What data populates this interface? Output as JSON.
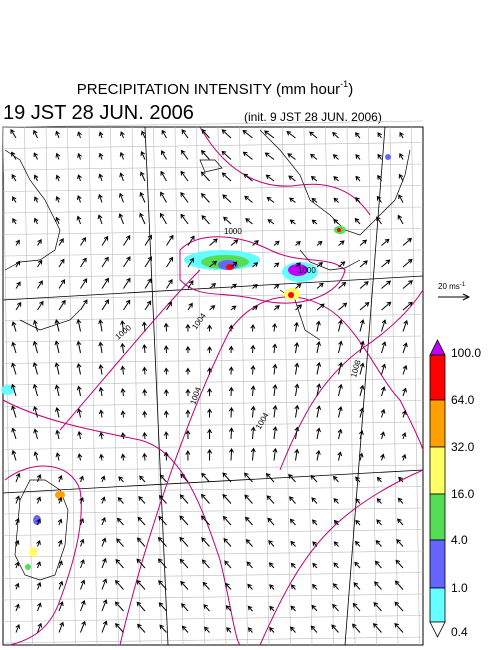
{
  "title": {
    "main": "PRECIPITATION INTENSITY (mm hour",
    "superscript": "-1",
    "close": ")"
  },
  "valid_time": "19 JST 28 JUN. 2006",
  "init_time": "(init. 9 JST 28 JUN. 2006)",
  "reference_vector": {
    "label": "20 ms",
    "superscript": "-1"
  },
  "contour_labels": [
    "1000",
    "1000",
    "1000",
    "1004",
    "1004",
    "1004",
    "1008"
  ],
  "legend": {
    "labels": [
      "100.0",
      "64.0",
      "32.0",
      "16.0",
      "4.0",
      "1.0",
      "0.4"
    ],
    "colors": [
      "#c000ff",
      "#ff0000",
      "#ff9f00",
      "#ffff66",
      "#55dd55",
      "#6666ff",
      "#66ffff",
      "#ffffff"
    ]
  }
}
